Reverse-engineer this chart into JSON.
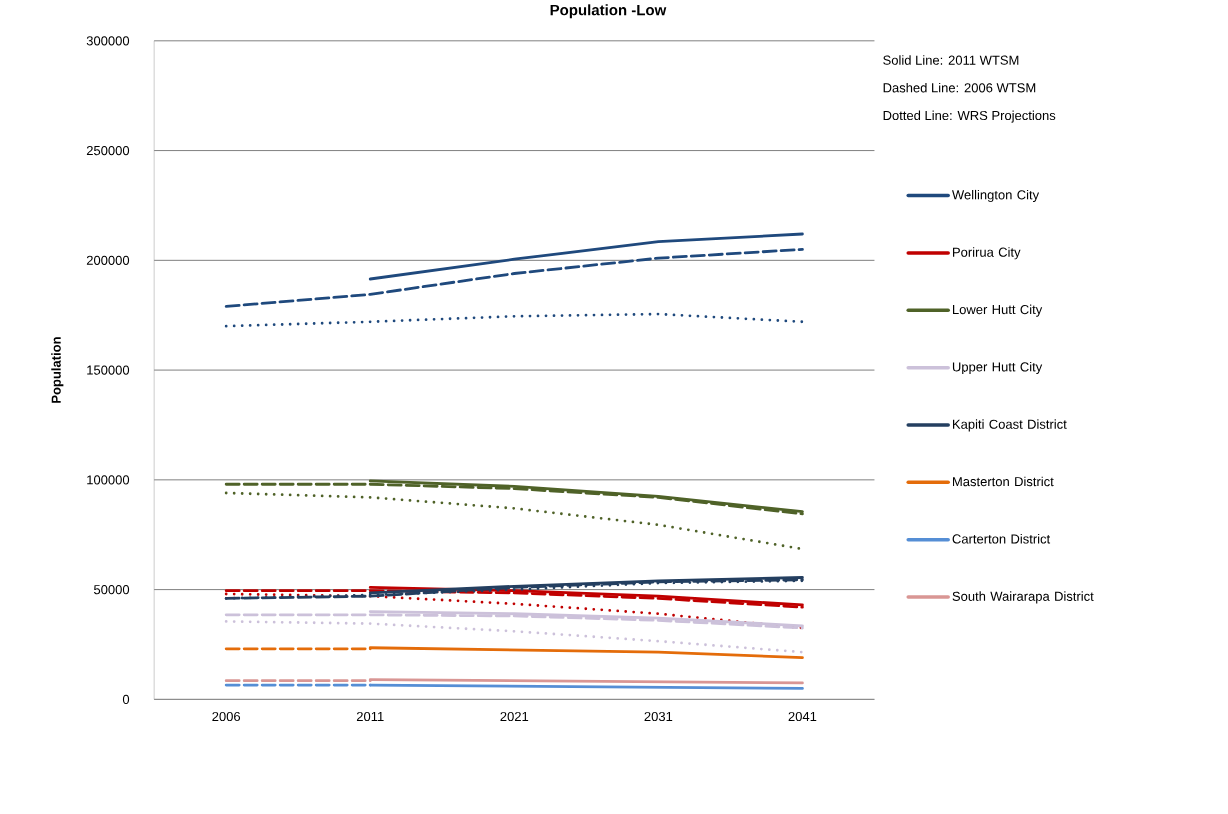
{
  "chart_data": {
    "type": "line",
    "title": "Population -Low",
    "ylabel": "Population",
    "categories": [
      "2006",
      "2011",
      "2021",
      "2031",
      "2041"
    ],
    "ylim": [
      0,
      300000
    ],
    "yticks": [
      0,
      50000,
      100000,
      150000,
      200000,
      250000,
      300000
    ],
    "grid": "y",
    "legend": "right",
    "annotations": [
      "Solid Line: 2011 WTSM",
      "Dashed Line: 2006 WTSM",
      "Dotted Line: WRS Projections"
    ],
    "series": [
      {
        "name": "Wellington City",
        "color": "#1f497d",
        "line_style": "solid",
        "values": [
          null,
          191500,
          200500,
          208500,
          212000
        ]
      },
      {
        "color": "#1f497d",
        "line_style": "dashed",
        "values": [
          179000,
          184500,
          194000,
          201000,
          205000
        ]
      },
      {
        "color": "#1f497d",
        "line_style": "dotted",
        "values": [
          170000,
          172000,
          174500,
          175500,
          172000
        ]
      },
      {
        "name": "Porirua City",
        "color": "#c00000",
        "line_style": "solid",
        "values": [
          null,
          51000,
          49500,
          47000,
          43000
        ]
      },
      {
        "color": "#c00000",
        "line_style": "dashed",
        "values": [
          49500,
          49500,
          48500,
          46000,
          42000
        ]
      },
      {
        "color": "#c00000",
        "line_style": "dotted",
        "values": [
          48000,
          47000,
          43500,
          39000,
          32500
        ]
      },
      {
        "name": "Lower Hutt City",
        "color": "#4f6228",
        "line_style": "solid",
        "values": [
          null,
          99500,
          97000,
          92500,
          85500
        ]
      },
      {
        "color": "#4f6228",
        "line_style": "dashed",
        "values": [
          98000,
          98000,
          96000,
          92000,
          84500
        ]
      },
      {
        "color": "#4f6228",
        "line_style": "dotted",
        "values": [
          94000,
          92000,
          87000,
          79500,
          68500
        ]
      },
      {
        "name": "Upper Hutt City",
        "color": "#ccc1da",
        "line_style": "solid",
        "values": [
          null,
          40000,
          39000,
          37000,
          33500
        ]
      },
      {
        "color": "#ccc1da",
        "line_style": "dashed",
        "values": [
          38500,
          38500,
          38000,
          36000,
          32500
        ]
      },
      {
        "color": "#ccc1da",
        "line_style": "dotted",
        "values": [
          35500,
          34500,
          31000,
          26500,
          21500
        ]
      },
      {
        "name": "Kapiti Coast District",
        "color": "#243f60",
        "line_style": "solid",
        "values": [
          null,
          48500,
          51500,
          54000,
          55500
        ]
      },
      {
        "color": "#243f60",
        "line_style": "dashed",
        "values": [
          46000,
          47000,
          51000,
          53500,
          54500
        ]
      },
      {
        "color": "#243f60",
        "line_style": "dotted",
        "values": [
          46000,
          47500,
          50000,
          53000,
          54000
        ]
      },
      {
        "name": "Masterton District",
        "color": "#e46c0a",
        "line_style": "solid",
        "values": [
          null,
          23500,
          22500,
          21500,
          19000
        ]
      },
      {
        "color": "#e46c0a",
        "line_style": "dashed",
        "values": [
          23000,
          23000,
          null,
          null,
          null
        ]
      },
      {
        "name": "Carterton District",
        "color": "#558ed5",
        "line_style": "solid",
        "values": [
          null,
          6500,
          6000,
          5500,
          5000
        ]
      },
      {
        "color": "#558ed5",
        "line_style": "dashed",
        "values": [
          6500,
          6500,
          null,
          null,
          null
        ]
      },
      {
        "name": "South Wairarapa District",
        "color": "#d99694",
        "line_style": "solid",
        "values": [
          null,
          9000,
          8500,
          8000,
          7500
        ]
      },
      {
        "color": "#d99694",
        "line_style": "dashed",
        "values": [
          8500,
          8500,
          null,
          null,
          null
        ]
      }
    ]
  }
}
